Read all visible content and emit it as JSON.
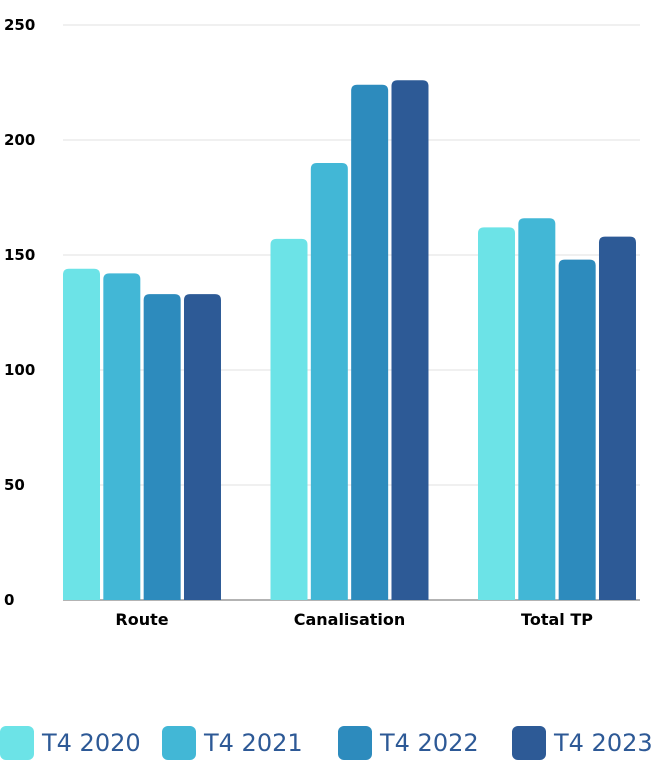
{
  "chart_data": {
    "type": "bar",
    "categories": [
      "Route",
      "Canalisation",
      "Total TP"
    ],
    "series": [
      {
        "name": "T4 2020",
        "values": [
          144,
          157,
          162
        ],
        "color": "#6ce3e7"
      },
      {
        "name": "T4 2021",
        "values": [
          142,
          190,
          166
        ],
        "color": "#42b7d6"
      },
      {
        "name": "T4 2022",
        "values": [
          133,
          224,
          148
        ],
        "color": "#2d8bbd"
      },
      {
        "name": "T4 2023",
        "values": [
          133,
          226,
          158
        ],
        "color": "#2d5a96"
      }
    ],
    "yticks": [
      0,
      50,
      100,
      150,
      200,
      250
    ],
    "ylim": [
      0,
      250
    ],
    "grid": true,
    "legend_position": "bottom",
    "title": "",
    "xlabel": "",
    "ylabel": ""
  }
}
